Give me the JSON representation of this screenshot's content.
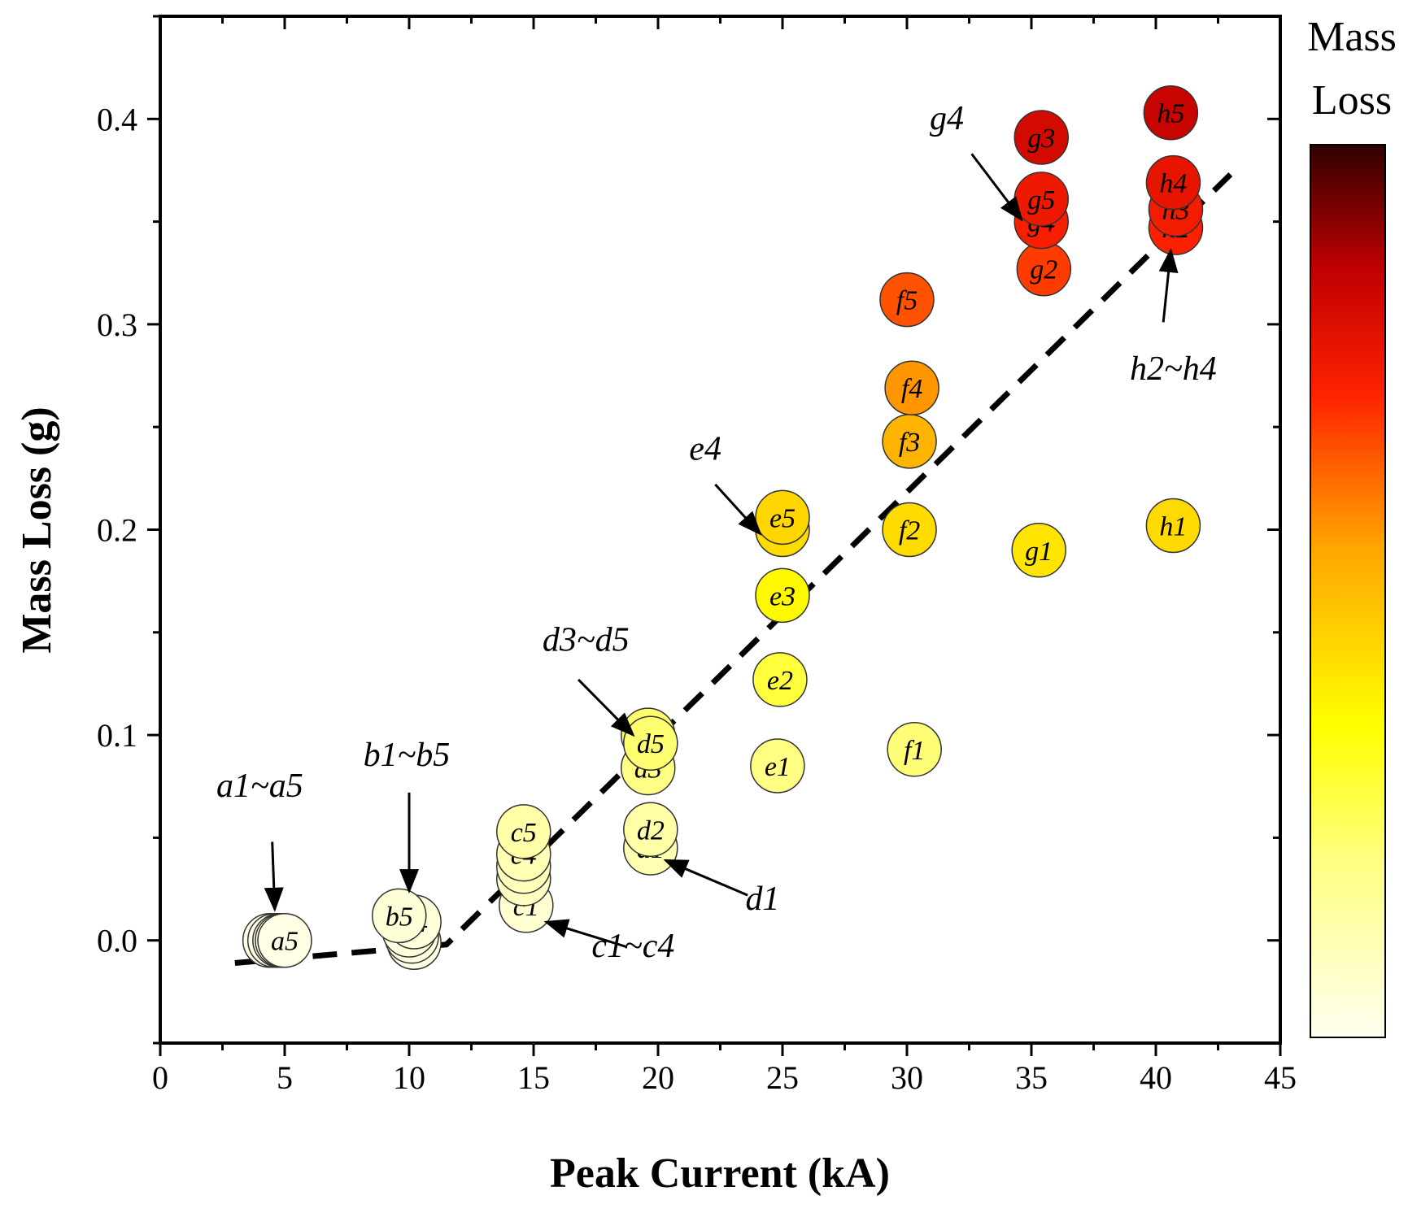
{
  "chart_data": {
    "type": "scatter",
    "xlabel": "Peak Current (kA)",
    "ylabel": "Mass Loss (g)",
    "xlim": [
      0,
      45
    ],
    "ylim": [
      -0.05,
      0.45
    ],
    "xticks": [
      0,
      5,
      10,
      15,
      20,
      25,
      30,
      35,
      40,
      45
    ],
    "yticks": [
      0.0,
      0.1,
      0.2,
      0.3,
      0.4
    ],
    "grid": false,
    "colorbar": {
      "title_line1": "Mass",
      "title_line2": "Loss",
      "colormap": "hot-reversed"
    },
    "points": [
      {
        "label": "a1",
        "x": 4.4,
        "y": 0.0
      },
      {
        "label": "a2",
        "x": 4.6,
        "y": 0.0
      },
      {
        "label": "a3",
        "x": 4.8,
        "y": 0.0
      },
      {
        "label": "a4",
        "x": 4.9,
        "y": 0.0
      },
      {
        "label": "a5",
        "x": 5.0,
        "y": 0.0
      },
      {
        "label": "b1",
        "x": 10.2,
        "y": -0.001
      },
      {
        "label": "b2",
        "x": 10.1,
        "y": 0.002
      },
      {
        "label": "b3",
        "x": 10.0,
        "y": 0.005
      },
      {
        "label": "b4",
        "x": 10.2,
        "y": 0.009
      },
      {
        "label": "b5",
        "x": 9.6,
        "y": 0.012
      },
      {
        "label": "c1",
        "x": 14.7,
        "y": 0.017
      },
      {
        "label": "c2",
        "x": 14.6,
        "y": 0.03
      },
      {
        "label": "c3",
        "x": 14.6,
        "y": 0.036
      },
      {
        "label": "c4",
        "x": 14.6,
        "y": 0.042
      },
      {
        "label": "c5",
        "x": 14.6,
        "y": 0.053
      },
      {
        "label": "d1",
        "x": 19.7,
        "y": 0.045
      },
      {
        "label": "d2",
        "x": 19.7,
        "y": 0.054
      },
      {
        "label": "d3",
        "x": 19.6,
        "y": 0.084
      },
      {
        "label": "d4",
        "x": 19.6,
        "y": 0.1
      },
      {
        "label": "d5",
        "x": 19.7,
        "y": 0.096
      },
      {
        "label": "e1",
        "x": 24.8,
        "y": 0.085
      },
      {
        "label": "e2",
        "x": 24.9,
        "y": 0.127
      },
      {
        "label": "e3",
        "x": 25.0,
        "y": 0.168
      },
      {
        "label": "e4",
        "x": 25.0,
        "y": 0.2
      },
      {
        "label": "e5",
        "x": 25.0,
        "y": 0.206
      },
      {
        "label": "f1",
        "x": 30.3,
        "y": 0.093
      },
      {
        "label": "f2",
        "x": 30.1,
        "y": 0.2
      },
      {
        "label": "f3",
        "x": 30.1,
        "y": 0.243
      },
      {
        "label": "f4",
        "x": 30.2,
        "y": 0.269
      },
      {
        "label": "f5",
        "x": 30.0,
        "y": 0.312
      },
      {
        "label": "g1",
        "x": 35.3,
        "y": 0.19
      },
      {
        "label": "g2",
        "x": 35.5,
        "y": 0.327
      },
      {
        "label": "g3",
        "x": 35.4,
        "y": 0.391
      },
      {
        "label": "g4",
        "x": 35.4,
        "y": 0.35
      },
      {
        "label": "g5",
        "x": 35.4,
        "y": 0.361
      },
      {
        "label": "h1",
        "x": 40.7,
        "y": 0.202
      },
      {
        "label": "h2",
        "x": 40.8,
        "y": 0.347
      },
      {
        "label": "h3",
        "x": 40.8,
        "y": 0.356
      },
      {
        "label": "h4",
        "x": 40.7,
        "y": 0.369
      },
      {
        "label": "h5",
        "x": 40.6,
        "y": 0.403
      }
    ],
    "fit_line": {
      "style": "dashed",
      "points": [
        [
          3.0,
          -0.011
        ],
        [
          11.5,
          -0.002
        ],
        [
          43.0,
          0.373
        ]
      ]
    },
    "annotations": [
      {
        "text": "a1~a5",
        "text_x": 4.0,
        "text_y": 0.07,
        "arrow_from": [
          4.5,
          0.048
        ],
        "arrow_to": [
          4.6,
          0.015
        ]
      },
      {
        "text": "b1~b5",
        "text_x": 9.9,
        "text_y": 0.085,
        "arrow_from": [
          10.0,
          0.072
        ],
        "arrow_to": [
          10.0,
          0.024
        ]
      },
      {
        "text": "c1~c4",
        "text_x": 19.0,
        "text_y": -0.008,
        "arrow_from": [
          18.7,
          -0.003
        ],
        "arrow_to": [
          15.5,
          0.009
        ]
      },
      {
        "text": "d1",
        "text_x": 24.2,
        "text_y": 0.015,
        "arrow_from": [
          23.6,
          0.022
        ],
        "arrow_to": [
          20.3,
          0.039
        ]
      },
      {
        "text": "d3~d5",
        "text_x": 17.1,
        "text_y": 0.141,
        "arrow_from": [
          16.8,
          0.127
        ],
        "arrow_to": [
          19.0,
          0.1
        ]
      },
      {
        "text": "e4",
        "text_x": 21.9,
        "text_y": 0.234,
        "arrow_from": [
          22.3,
          0.222
        ],
        "arrow_to": [
          24.1,
          0.198
        ]
      },
      {
        "text": "g4",
        "text_x": 31.6,
        "text_y": 0.395,
        "arrow_from": [
          32.6,
          0.383
        ],
        "arrow_to": [
          34.6,
          0.351
        ]
      },
      {
        "text": "h2~h4",
        "text_x": 40.7,
        "text_y": 0.273,
        "arrow_from": [
          40.3,
          0.301
        ],
        "arrow_to": [
          40.6,
          0.336
        ]
      }
    ]
  }
}
